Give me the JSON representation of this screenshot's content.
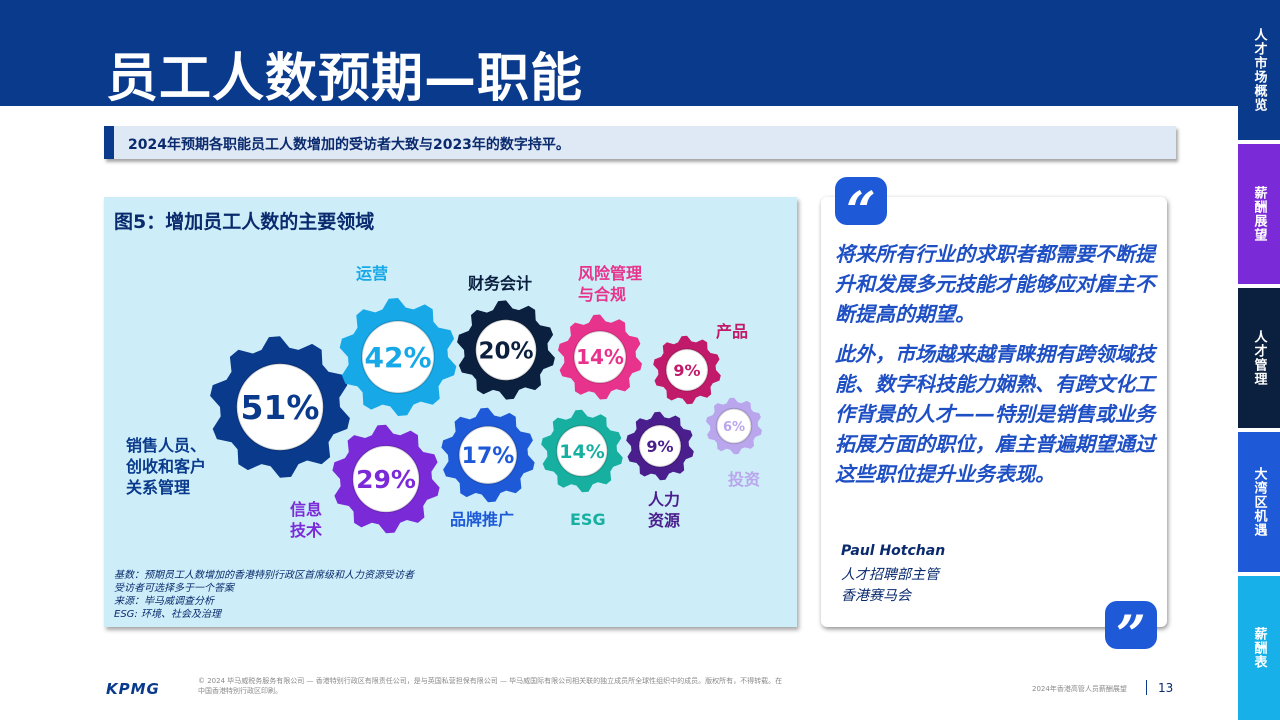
{
  "header": {
    "title": "员工人数预期—职能"
  },
  "sidetabs": [
    {
      "label": "人才市场概览",
      "color": "#0a3a8c"
    },
    {
      "label": "薪酬展望",
      "color": "#7b2ad8"
    },
    {
      "label": "人才管理",
      "color": "#0b1f3f"
    },
    {
      "label": "大湾区机遇",
      "color": "#1e5ad8"
    },
    {
      "label": "薪酬表",
      "color": "#17b0e8"
    }
  ],
  "subtitle": "2024年预期各职能员工人数增加的受访者大致与2023年的数字持平。",
  "figure": {
    "title": "图5：增加员工人数的主要领域",
    "items": [
      {
        "label": "销售人员、\n创收和客户\n关系管理",
        "value": "51%",
        "color": "#0a3a8c"
      },
      {
        "label": "运营",
        "value": "42%",
        "color": "#17a8e8"
      },
      {
        "label": "财务会计",
        "value": "20%",
        "color": "#0b1f3f"
      },
      {
        "label": "风险管理\n与合规",
        "value": "14%",
        "color": "#e8338c"
      },
      {
        "label": "产品",
        "value": "9%",
        "color": "#c21a6a"
      },
      {
        "label": "信息\n技术",
        "value": "29%",
        "color": "#7b2ad8"
      },
      {
        "label": "品牌推广",
        "value": "17%",
        "color": "#1e5ad8"
      },
      {
        "label": "ESG",
        "value": "14%",
        "color": "#17b0a0"
      },
      {
        "label": "人力\n资源",
        "value": "9%",
        "color": "#4a1e8c"
      },
      {
        "label": "投资",
        "value": "6%",
        "color": "#b9a6ec"
      }
    ],
    "notes": [
      "基数：预期员工人数增加的香港特别行政区首席级和人力资源受访者",
      "受访者可选择多于一个答案",
      "来源：毕马威调查分析",
      "ESG: 环境、社会及治理"
    ]
  },
  "quote": {
    "open_mark": "“",
    "close_mark": "”",
    "paragraphs": [
      "将来所有行业的求职者都需要不断提升和发展多元技能才能够应对雇主不断提高的期望。",
      "此外，市场越来越青睐拥有跨领域技能、数字科技能力娴熟、有跨文化工作背景的人才——特别是销售或业务拓展方面的职位，雇主普遍期望通过这些职位提升业务表现。"
    ],
    "name": "Paul Hotchan",
    "role": "人才招聘部主管",
    "org": "香港赛马会"
  },
  "footer": {
    "logo": "KPMG",
    "copyright": "© 2024 毕马威税务服务有限公司 — 香港特别行政区有限责任公司，是与英国私营担保有限公司 — 毕马威国际有限公司相关联的独立成员所全球性组织中的成员。版权所有，不得转载。在中国香港特别行政区印刷。",
    "report": "2024年香港高管人员薪酬展望",
    "page": "13"
  }
}
